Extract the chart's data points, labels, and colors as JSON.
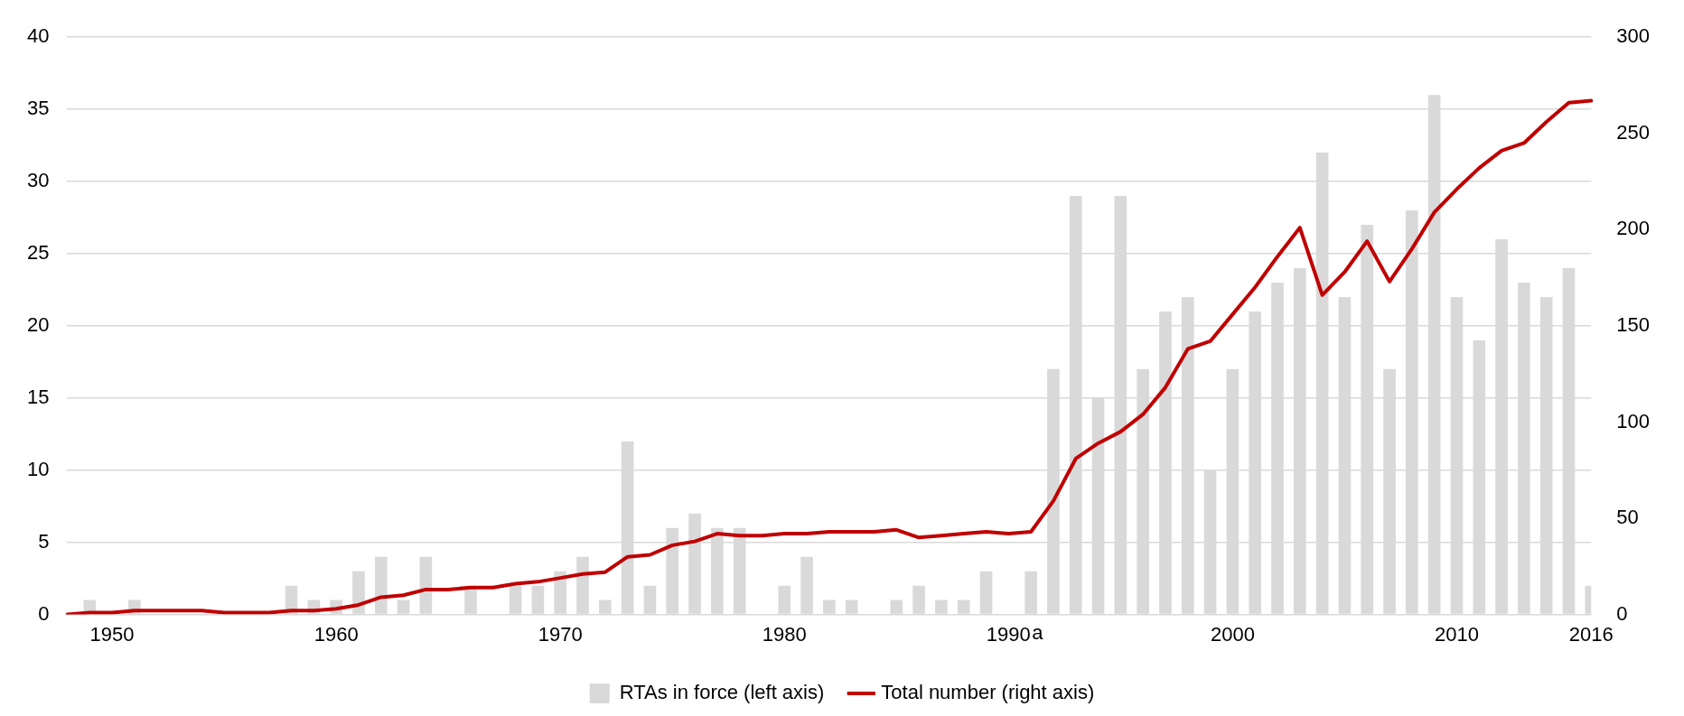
{
  "chart_data": {
    "type": "bar",
    "categories": [
      null,
      null,
      "1950",
      null,
      null,
      null,
      null,
      null,
      null,
      null,
      null,
      null,
      "1960",
      null,
      null,
      null,
      null,
      null,
      null,
      null,
      null,
      null,
      "1970",
      null,
      null,
      null,
      null,
      null,
      null,
      null,
      null,
      null,
      "1980",
      null,
      null,
      null,
      null,
      null,
      null,
      null,
      null,
      null,
      "1990",
      null,
      null,
      null,
      null,
      null,
      null,
      null,
      null,
      null,
      "2000",
      null,
      null,
      null,
      null,
      null,
      null,
      null,
      null,
      null,
      "2010",
      null,
      null,
      null,
      null,
      null,
      "2016"
    ],
    "series": [
      {
        "name": "RTAs in force (left axis)",
        "color": "#d9d9d9",
        "values": [
          0,
          1,
          0,
          1,
          0,
          0,
          0,
          0,
          0,
          0,
          2,
          1,
          1,
          3,
          4,
          1,
          4,
          0,
          2,
          0,
          2,
          2,
          3,
          4,
          1,
          12,
          2,
          6,
          7,
          6,
          6,
          0,
          2,
          4,
          1,
          1,
          0,
          1,
          2,
          1,
          1,
          3,
          0,
          3,
          17,
          29,
          15,
          29,
          17,
          21,
          22,
          10,
          17,
          21,
          23,
          24,
          32,
          22,
          27,
          17,
          28,
          36,
          22,
          19,
          26,
          23,
          22,
          24,
          2
        ]
      },
      {
        "name": "Total number (right axis)",
        "type": "line",
        "axis": "y2",
        "color": "#c00000",
        "values": [
          0,
          1,
          1,
          2,
          2,
          2,
          2,
          1,
          1,
          1,
          2,
          2,
          3,
          5,
          9,
          10,
          13,
          13,
          14,
          14,
          16,
          17,
          19,
          21,
          22,
          30,
          31,
          36,
          38,
          42,
          41,
          41,
          42,
          42,
          43,
          43,
          43,
          44,
          40,
          41,
          42,
          43,
          42,
          43,
          59,
          81,
          89,
          95,
          104,
          118,
          138,
          142,
          156,
          170,
          186,
          201,
          166,
          178,
          194,
          173,
          190,
          209,
          221,
          232,
          241,
          245,
          256,
          266,
          267
        ]
      }
    ],
    "ylim": [
      0,
      40
    ],
    "yticks": [
      0,
      5,
      10,
      15,
      20,
      25,
      30,
      35,
      40
    ],
    "y2lim": [
      0,
      300
    ],
    "y2ticks": [
      0,
      50,
      100,
      150,
      200,
      250,
      300
    ],
    "grid": "y",
    "legend": "bottom",
    "marker": "none",
    "line_style": "solid",
    "annotations": [
      "a"
    ]
  }
}
